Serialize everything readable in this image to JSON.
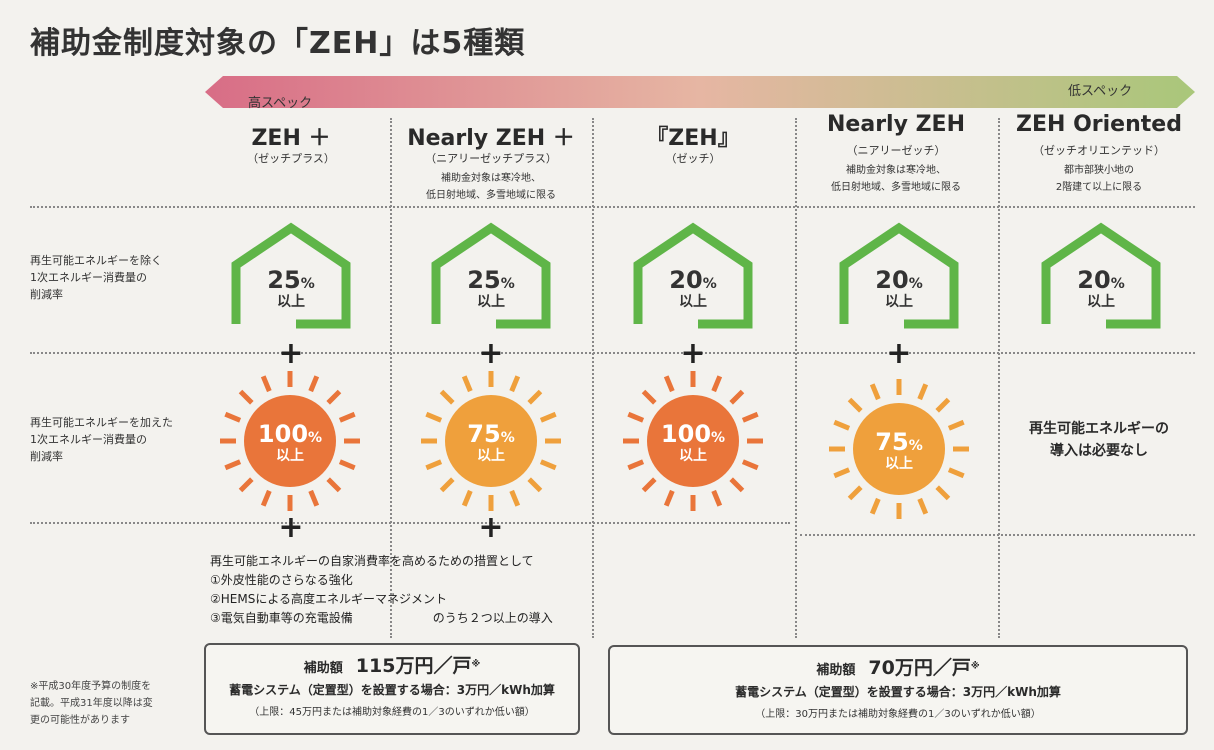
{
  "title": "補助金制度対象の「ZEH」は5種類",
  "spec": {
    "high": "高スペック",
    "low": "低スペック"
  },
  "columns": [
    {
      "name": "ZEH ＋",
      "sub": "（ゼッチプラス）",
      "note1": "",
      "note2": "",
      "house_pct": "25",
      "house_suffix": "以上",
      "sun_pct": "100",
      "sun_suffix": "以上"
    },
    {
      "name": "Nearly ZEH ＋",
      "sub": "（ニアリーゼッチプラス）",
      "note1": "補助金対象は寒冷地、",
      "note2": "低日射地域、多雪地域に限る",
      "house_pct": "25",
      "house_suffix": "以上",
      "sun_pct": "75",
      "sun_suffix": "以上"
    },
    {
      "name": "『ZEH』",
      "sub": "（ゼッチ）",
      "note1": "",
      "note2": "",
      "house_pct": "20",
      "house_suffix": "以上",
      "sun_pct": "100",
      "sun_suffix": "以上"
    },
    {
      "name": "Nearly ZEH",
      "sub": "（ニアリーゼッチ）",
      "note1": "補助金対象は寒冷地、",
      "note2": "低日射地域、多雪地域に限る",
      "house_pct": "20",
      "house_suffix": "以上",
      "sun_pct": "75",
      "sun_suffix": "以上"
    },
    {
      "name": "ZEH Oriented",
      "sub": "（ゼッチオリエンテッド）",
      "note1": "都市部狭小地の",
      "note2": "2階建て以上に限る",
      "house_pct": "20",
      "house_suffix": "以上",
      "none1": "再生可能エネルギーの",
      "none2": "導入は必要なし"
    }
  ],
  "row_labels": {
    "row1": [
      "再生可能エネルギーを除く",
      "1次エネルギー消費量の",
      "削減率"
    ],
    "row2": [
      "再生可能エネルギーを加えた",
      "1次エネルギー消費量の",
      "削減率"
    ]
  },
  "pct_unit": "%",
  "plus_symbol": "+",
  "measures": {
    "intro": "再生可能エネルギーの自家消費率を高めるための措置として",
    "item1": "①外皮性能のさらなる強化",
    "item2": "②HEMSによる高度エネルギーマネジメント",
    "item3": "③電気自動車等の充電設備",
    "suffix": "のうち２つ以上の導入"
  },
  "subsidy_left": {
    "label": "補助額",
    "amount": "115万円／戸",
    "mark": "※",
    "storage": "蓄電システム（定置型）を設置する場合：3万円／kWh加算",
    "limit": "（上限：45万円または補助対象経費の1／3のいずれか低い額）"
  },
  "subsidy_right": {
    "label": "補助額",
    "amount": "70万円／戸",
    "mark": "※",
    "storage": "蓄電システム（定置型）を設置する場合：3万円／kWh加算",
    "limit": "（上限：30万円または補助対象経費の1／3のいずれか低い額）"
  },
  "footnote": [
    "※平成30年度予算の制度を",
    "記載。平成31年度以降は変",
    "更の可能性があります"
  ],
  "colors": {
    "house_green": "#5fb548",
    "sun_red": "#e9753a",
    "sun_orange": "#efa03c",
    "bar_pink": "#d86d86",
    "bar_green": "#a9c77a"
  }
}
